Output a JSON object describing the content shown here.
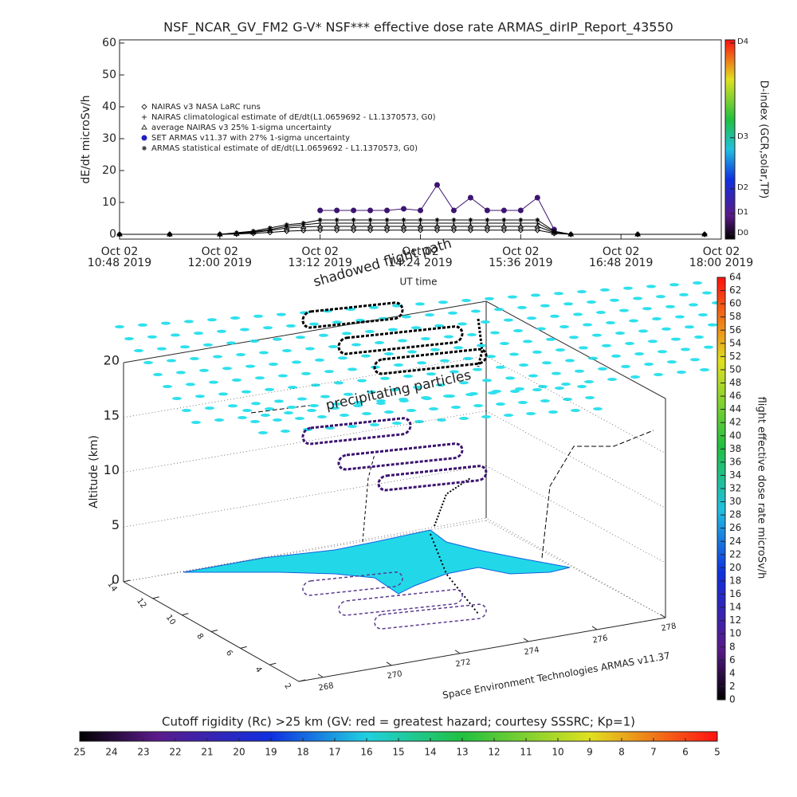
{
  "chart_data": [
    {
      "type": "line",
      "title": "NSF_NCAR_GV_FM2 G-V* NSF*** effective dose rate ARMAS_dirIP_Report_43550",
      "xlabel": "UT time",
      "ylabel": "dE/dt microSv/h",
      "x": [
        "2019-10-02T10:48",
        "2019-10-02T11:24",
        "2019-10-02T12:00",
        "2019-10-02T12:12",
        "2019-10-02T12:24",
        "2019-10-02T12:36",
        "2019-10-02T12:48",
        "2019-10-02T13:00",
        "2019-10-02T13:12",
        "2019-10-02T13:24",
        "2019-10-02T13:36",
        "2019-10-02T13:48",
        "2019-10-02T14:00",
        "2019-10-02T14:12",
        "2019-10-02T14:24",
        "2019-10-02T14:36",
        "2019-10-02T14:48",
        "2019-10-02T15:00",
        "2019-10-02T15:12",
        "2019-10-02T15:24",
        "2019-10-02T15:36",
        "2019-10-02T15:48",
        "2019-10-02T16:00",
        "2019-10-02T16:12",
        "2019-10-02T17:00",
        "2019-10-02T17:48"
      ],
      "xlim": [
        "2019-10-02T10:48",
        "2019-10-02T18:00"
      ],
      "xticks": [
        {
          "value": "2019-10-02T10:48",
          "label": [
            "Oct 02",
            "10:48 2019"
          ]
        },
        {
          "value": "2019-10-02T12:00",
          "label": [
            "Oct 02",
            "12:00 2019"
          ]
        },
        {
          "value": "2019-10-02T13:12",
          "label": [
            "Oct 02",
            "13:12 2019"
          ]
        },
        {
          "value": "2019-10-02T14:24",
          "label": [
            "Oct 02",
            "14:24 2019"
          ]
        },
        {
          "value": "2019-10-02T15:36",
          "label": [
            "Oct 02",
            "15:36 2019"
          ]
        },
        {
          "value": "2019-10-02T16:48",
          "label": [
            "Oct 02",
            "16:48 2019"
          ]
        },
        {
          "value": "2019-10-02T18:00",
          "label": [
            "Oct 02",
            "18:00 2019"
          ]
        }
      ],
      "ylim": [
        -1.5,
        61
      ],
      "yticks": [
        0,
        10,
        20,
        30,
        40,
        50,
        60
      ],
      "legend": "upper left",
      "series": [
        {
          "name": "NAIRAS v3 NASA LaRC runs",
          "marker": "diamond",
          "color": "#000000",
          "values": [
            0,
            0,
            0,
            0.1,
            0.3,
            0.6,
            1,
            1.2,
            1.3,
            1.3,
            1.3,
            1.3,
            1.3,
            1.3,
            1.3,
            1.3,
            1.3,
            1.3,
            1.3,
            1.3,
            1.3,
            1.3,
            0.3,
            0,
            0,
            0
          ]
        },
        {
          "name": "NAIRAS climatological estimate of dE/dt(L1.0659692 - L1.1370573, G0)",
          "marker": "plus",
          "color": "#000000",
          "values": [
            0,
            0,
            0,
            0.3,
            0.8,
            1.5,
            2.5,
            3,
            3.5,
            3.5,
            3.5,
            3.5,
            3.5,
            3.5,
            3.5,
            3.5,
            3.5,
            3.5,
            3.5,
            3.5,
            3.5,
            3.5,
            0.8,
            0,
            0,
            0
          ]
        },
        {
          "name": "average NAIRAS v3 25% 1-sigma uncertainty",
          "marker": "triangle",
          "color": "#000000",
          "values": [
            0,
            0,
            0,
            0.2,
            0.6,
            1.2,
            2,
            2.3,
            2.5,
            2.5,
            2.5,
            2.5,
            2.5,
            2.5,
            2.5,
            2.5,
            2.5,
            2.5,
            2.5,
            2.5,
            2.5,
            2.5,
            0.5,
            0,
            0,
            0
          ]
        },
        {
          "name": "SET ARMAS v11.37 with 27% 1-sigma uncertainty",
          "marker": "dot",
          "color": "#3c1470",
          "values": [
            null,
            null,
            null,
            null,
            null,
            null,
            null,
            null,
            7.5,
            7.5,
            7.5,
            7.5,
            7.5,
            8,
            7.5,
            15.5,
            7.5,
            11.5,
            7.5,
            7.5,
            7.5,
            11.5,
            1.5,
            null,
            null,
            null
          ]
        },
        {
          "name": "ARMAS statistical estimate of dE/dt(L1.0659692 - L1.1370573, G0)",
          "marker": "asterisk",
          "color": "#000000",
          "values": [
            0,
            0,
            0,
            0.5,
            1,
            2,
            3,
            3.5,
            4.5,
            4.5,
            4.5,
            4.5,
            4.5,
            4.5,
            4.5,
            4.5,
            4.5,
            4.5,
            4.5,
            4.5,
            4.5,
            4.5,
            1,
            0,
            0,
            0
          ]
        }
      ],
      "colorbar": {
        "label": "D-index (GCR,solar,TP)",
        "ticks": [
          {
            "value": 0,
            "label": "D0"
          },
          {
            "value": 6.5,
            "label": "D1"
          },
          {
            "value": 14.3,
            "label": "D2"
          },
          {
            "value": 30.3,
            "label": "D3"
          },
          {
            "value": 60,
            "label": "D4"
          }
        ]
      }
    },
    {
      "type": "surface3d",
      "annotations": [
        "shadowed flight path",
        "precipitating particles"
      ],
      "zlabel": "Altitude (km)",
      "zlim": [
        0,
        20
      ],
      "zticks": [
        0,
        5,
        10,
        15,
        20
      ],
      "ylim": [
        2,
        14
      ],
      "yticks": [
        14,
        12,
        10,
        8,
        6,
        4,
        2
      ],
      "xlim": [
        267.3,
        278
      ],
      "xticks": [
        268,
        270,
        272,
        274,
        276,
        278
      ],
      "credit": "Space Environment Technologies ARMAS v11.37",
      "colorbar": {
        "label": "flight effective dose rate microSv/h",
        "lim": [
          0,
          64
        ],
        "ticks": [
          0,
          2,
          4,
          6,
          8,
          10,
          12,
          14,
          16,
          18,
          20,
          22,
          24,
          26,
          28,
          30,
          32,
          34,
          36,
          38,
          40,
          42,
          44,
          46,
          48,
          50,
          52,
          54,
          56,
          58,
          60,
          62,
          64
        ]
      }
    },
    {
      "type": "colorbar",
      "title": "Cutoff rigidity (Rc) >25 km (GV: red = greatest hazard; courtesy SSSRC; Kp=1)",
      "lim": [
        25,
        5
      ],
      "ticks": [
        25,
        24,
        23,
        22,
        21,
        20,
        19,
        18,
        17,
        16,
        15,
        14,
        13,
        12,
        11,
        10,
        9,
        8,
        7,
        6,
        5
      ]
    }
  ]
}
